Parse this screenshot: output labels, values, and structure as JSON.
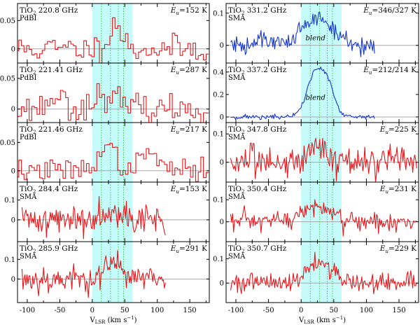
{
  "colors": {
    "observed": "#e8161b",
    "blended": "#1536c8",
    "band": "#c6fbfb",
    "guide": "#26b826",
    "zero": "#a8a8a8",
    "frame": "#000000"
  },
  "chart_data": {
    "type": "line",
    "title": "",
    "xlabel_main": "V",
    "xlabel_sub": "LSR",
    "xlabel_unit": "(km s",
    "xlabel_exp": "−1",
    "xlabel_close": ")",
    "xlim": [
      -115,
      180
    ],
    "xticks": [
      -100,
      -50,
      0,
      50,
      100,
      150
    ],
    "xtick_labels": [
      "-100",
      "-50",
      "0",
      "50",
      "100",
      "150"
    ],
    "velocity_band": [
      0,
      62
    ],
    "guide_lines": [
      14,
      28,
      40,
      48
    ],
    "panels": [
      {
        "id": "l1",
        "col": 0,
        "row": 0,
        "molecule": "TiO",
        "sub": "2",
        "freq": "220.8 GHz",
        "instrument": "PdBI",
        "eu_label": "E",
        "eu_sub": "u",
        "eu_value": "=152 K",
        "ylim": [
          -0.025,
          0.08
        ],
        "yticks": [
          0,
          0.05
        ],
        "ytick_labels": [
          "0",
          "0.05"
        ],
        "style": "step",
        "color": "observed",
        "x_start": -115,
        "x_end": 178,
        "dx": 4,
        "noise": 0.012,
        "seed": 11,
        "components": [
          {
            "v": 35,
            "amp": 0.046,
            "w": 10
          }
        ],
        "blend_label": ""
      },
      {
        "id": "l2",
        "col": 0,
        "row": 1,
        "molecule": "TiO",
        "sub": "2",
        "freq": "221.41 GHz",
        "instrument": "PdBI",
        "eu_label": "E",
        "eu_sub": "u",
        "eu_value": "=287 K",
        "ylim": [
          -0.022,
          0.075
        ],
        "yticks": [
          0,
          0.05
        ],
        "ytick_labels": [
          "0",
          "0.05"
        ],
        "style": "step",
        "color": "observed",
        "x_start": -115,
        "x_end": 178,
        "dx": 4,
        "noise": 0.011,
        "seed": 23,
        "components": [
          {
            "v": 20,
            "amp": 0.024,
            "w": 18
          },
          {
            "v": -55,
            "amp": 0.022,
            "w": 12
          }
        ],
        "blend_label": ""
      },
      {
        "id": "l3",
        "col": 0,
        "row": 2,
        "molecule": "TiO",
        "sub": "2",
        "freq": "221.46 GHz",
        "instrument": "PdBI",
        "eu_label": "E",
        "eu_sub": "u",
        "eu_value": "=217 K",
        "ylim": [
          -0.02,
          0.085
        ],
        "yticks": [
          0,
          0.05
        ],
        "ytick_labels": [
          "0",
          "0.05"
        ],
        "style": "step",
        "color": "observed",
        "x_start": -115,
        "x_end": 178,
        "dx": 4,
        "noise": 0.01,
        "seed": 37,
        "components": [
          {
            "v": 22,
            "amp": 0.04,
            "w": 15
          },
          {
            "v": 90,
            "amp": 0.03,
            "w": 14
          }
        ],
        "blend_label": ""
      },
      {
        "id": "l4",
        "col": 0,
        "row": 3,
        "molecule": "TiO",
        "sub": "2",
        "freq": "284.4 GHz",
        "instrument": "SMA",
        "eu_label": "E",
        "eu_sub": "u",
        "eu_value": "=153 K",
        "ylim": [
          -0.11,
          0.19
        ],
        "yticks": [
          0,
          0.1
        ],
        "ytick_labels": [
          "0",
          "0.1"
        ],
        "style": "line",
        "color": "observed",
        "x_start": -108,
        "x_end": 113,
        "dx": 1.5,
        "noise": 0.038,
        "seed": 41,
        "components": [
          {
            "v": 30,
            "amp": 0.06,
            "w": 15
          }
        ],
        "blend_label": ""
      },
      {
        "id": "l5",
        "col": 0,
        "row": 4,
        "molecule": "TiO",
        "sub": "2",
        "freq": "285.9 GHz",
        "instrument": "SMA",
        "eu_label": "E",
        "eu_sub": "u",
        "eu_value": "=291 K",
        "ylim": [
          -0.12,
          0.19
        ],
        "yticks": [
          0,
          0.1
        ],
        "ytick_labels": [
          "0",
          "0.1"
        ],
        "style": "line",
        "color": "observed",
        "x_start": -108,
        "x_end": 113,
        "dx": 1.5,
        "noise": 0.036,
        "seed": 53,
        "components": [
          {
            "v": 35,
            "amp": 0.075,
            "w": 15
          }
        ],
        "blend_label": ""
      },
      {
        "id": "r1",
        "col": 1,
        "row": 0,
        "molecule": "TiO",
        "sub": "2",
        "freq": "331.2 GHz",
        "instrument": "SMA",
        "eu_label": "E",
        "eu_sub": "u",
        "eu_value": "=346/327 K",
        "ylim": [
          -0.055,
          0.13
        ],
        "yticks": [
          0,
          0.1
        ],
        "ytick_labels": [
          "0",
          "0.1"
        ],
        "style": "line",
        "color": "blended",
        "x_start": -108,
        "x_end": 113,
        "dx": 1.5,
        "noise": 0.016,
        "seed": 61,
        "components": [
          {
            "v": 25,
            "amp": 0.083,
            "w": 24
          },
          {
            "v": -55,
            "amp": 0.02,
            "w": 10
          }
        ],
        "blend_label": "blend"
      },
      {
        "id": "r2",
        "col": 1,
        "row": 1,
        "molecule": "TiO",
        "sub": "2",
        "freq": "337.2 GHz",
        "instrument": "SMA",
        "eu_label": "E",
        "eu_sub": "u",
        "eu_value": "=212/214 K",
        "ylim": [
          -0.05,
          0.48
        ],
        "yticks": [
          0,
          0.2,
          0.4
        ],
        "ytick_labels": [
          "0",
          "0.2",
          "0.4"
        ],
        "style": "line",
        "color": "blended",
        "x_start": -108,
        "x_end": 113,
        "dx": 1.5,
        "noise": 0.011,
        "seed": 71,
        "components": [
          {
            "v": 22,
            "amp": 0.39,
            "w": 13
          },
          {
            "v": 42,
            "amp": 0.22,
            "w": 10
          }
        ],
        "blend_label": "blend"
      },
      {
        "id": "r3",
        "col": 1,
        "row": 2,
        "molecule": "TiO",
        "sub": "2",
        "freq": "347.8 GHz",
        "instrument": "SMA",
        "eu_label": "E",
        "eu_sub": "u",
        "eu_value": "=225 K",
        "ylim": [
          -0.07,
          0.14
        ],
        "yticks": [
          0,
          0.1
        ],
        "ytick_labels": [
          "0",
          "0.1"
        ],
        "style": "line",
        "color": "observed",
        "x_start": -108,
        "x_end": 178,
        "dx": 1.5,
        "noise": 0.027,
        "seed": 83,
        "components": [
          {
            "v": 25,
            "amp": 0.06,
            "w": 15
          }
        ],
        "blend_label": ""
      },
      {
        "id": "r4",
        "col": 1,
        "row": 3,
        "molecule": "TiO",
        "sub": "2",
        "freq": "350.4 GHz",
        "instrument": "SMA",
        "eu_label": "E",
        "eu_sub": "u",
        "eu_value": "=231 K",
        "ylim": [
          -0.09,
          0.18
        ],
        "yticks": [
          0,
          0.1
        ],
        "ytick_labels": [
          "0",
          "0.1"
        ],
        "style": "line",
        "color": "observed",
        "x_start": -108,
        "x_end": 178,
        "dx": 1.5,
        "noise": 0.024,
        "seed": 97,
        "components": [
          {
            "v": 22,
            "amp": 0.07,
            "w": 20
          }
        ],
        "blend_label": ""
      },
      {
        "id": "r5",
        "col": 1,
        "row": 4,
        "molecule": "TiO",
        "sub": "2",
        "freq": "350.7 GHz",
        "instrument": "SMA",
        "eu_label": "E",
        "eu_sub": "u",
        "eu_value": "=229 K",
        "ylim": [
          -0.08,
          0.17
        ],
        "yticks": [
          0,
          0.1
        ],
        "ytick_labels": [
          "0",
          "0.1"
        ],
        "style": "line",
        "color": "observed",
        "x_start": -108,
        "x_end": 178,
        "dx": 1.5,
        "noise": 0.02,
        "seed": 101,
        "components": [
          {
            "v": 28,
            "amp": 0.085,
            "w": 20
          }
        ],
        "blend_label": ""
      }
    ]
  }
}
